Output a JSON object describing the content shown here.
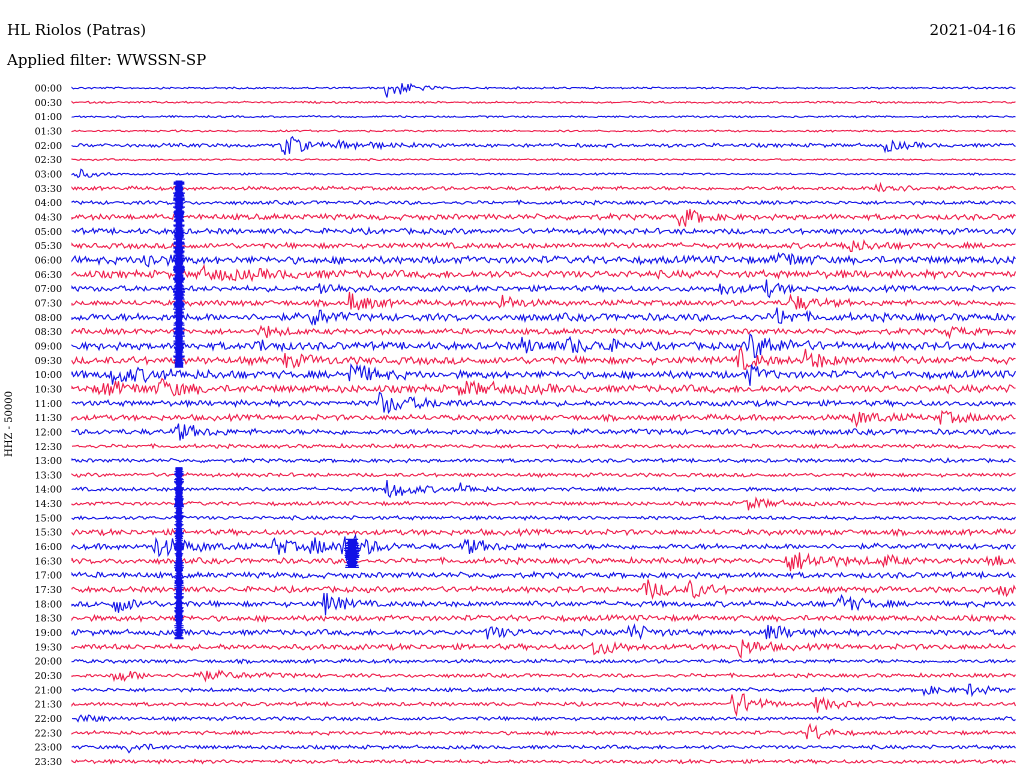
{
  "header": {
    "station": "HL Riolos (Patras)",
    "date": "2021-04-16",
    "filter": "Applied filter: WWSSN-SP"
  },
  "chart_data": {
    "type": "line",
    "title": "HL Riolos (Patras)",
    "ylabel": "HHZ - 50000",
    "row_labels": [
      "00:00",
      "00:30",
      "01:00",
      "01:30",
      "02:00",
      "02:30",
      "03:00",
      "03:30",
      "04:00",
      "04:30",
      "05:00",
      "05:30",
      "06:00",
      "06:30",
      "07:00",
      "07:30",
      "08:00",
      "08:30",
      "09:00",
      "09:30",
      "10:00",
      "10:30",
      "11:00",
      "11:30",
      "12:00",
      "12:30",
      "13:00",
      "13:30",
      "14:00",
      "14:30",
      "15:00",
      "15:30",
      "16:00",
      "16:30",
      "17:00",
      "17:30",
      "18:00",
      "18:30",
      "19:00",
      "19:30",
      "20:00",
      "20:30",
      "21:00",
      "21:30",
      "22:00",
      "22:30",
      "23:00",
      "23:30"
    ],
    "colors": {
      "even_rows": "#1010e6",
      "odd_rows": "#ee1c4a"
    },
    "row_noise": [
      1,
      1,
      1,
      1,
      2,
      1,
      1,
      2,
      2,
      3,
      3,
      3,
      4,
      4,
      3,
      3,
      4,
      3,
      4,
      4,
      4,
      4,
      3,
      3,
      3,
      2,
      2,
      2,
      2,
      2,
      2,
      3,
      3,
      3,
      3,
      3,
      3,
      3,
      3,
      3,
      2,
      2,
      2,
      2,
      2,
      2,
      2,
      2
    ],
    "events": [
      {
        "row": 0,
        "minute": 10.0,
        "amp": 12,
        "width": 0.6
      },
      {
        "row": 4,
        "minute": 6.7,
        "amp": 14,
        "width": 0.5
      },
      {
        "row": 4,
        "minute": 8.4,
        "amp": 4,
        "width": 1.2
      },
      {
        "row": 4,
        "minute": 25.8,
        "amp": 6,
        "width": 0.6
      },
      {
        "row": 6,
        "minute": 0.1,
        "amp": 6,
        "width": 0.5
      },
      {
        "row": 7,
        "minute": 25.6,
        "amp": 7,
        "width": 0.6
      },
      {
        "row": 9,
        "minute": 19.3,
        "amp": 10,
        "width": 0.6
      },
      {
        "row": 11,
        "minute": 24.5,
        "amp": 6,
        "width": 0.8
      },
      {
        "row": 12,
        "minute": 2.3,
        "amp": 8,
        "width": 0.5
      },
      {
        "row": 12,
        "minute": 22.5,
        "amp": 9,
        "width": 0.5
      },
      {
        "row": 13,
        "minute": 4.0,
        "amp": 5,
        "width": 2.0
      },
      {
        "row": 14,
        "minute": 7.8,
        "amp": 6,
        "width": 0.7
      },
      {
        "row": 14,
        "minute": 20.5,
        "amp": 6,
        "width": 0.6
      },
      {
        "row": 14,
        "minute": 22.0,
        "amp": 8,
        "width": 0.5
      },
      {
        "row": 15,
        "minute": 8.8,
        "amp": 10,
        "width": 0.6
      },
      {
        "row": 15,
        "minute": 13.6,
        "amp": 8,
        "width": 0.5
      },
      {
        "row": 15,
        "minute": 22.8,
        "amp": 8,
        "width": 0.7
      },
      {
        "row": 16,
        "minute": 7.6,
        "amp": 9,
        "width": 0.5
      },
      {
        "row": 16,
        "minute": 22.4,
        "amp": 8,
        "width": 0.5
      },
      {
        "row": 17,
        "minute": 6.0,
        "amp": 6,
        "width": 0.5
      },
      {
        "row": 17,
        "minute": 27.8,
        "amp": 5,
        "width": 0.5
      },
      {
        "row": 18,
        "minute": 5.8,
        "amp": 6,
        "width": 0.5
      },
      {
        "row": 18,
        "minute": 14.3,
        "amp": 6,
        "width": 0.7
      },
      {
        "row": 18,
        "minute": 15.7,
        "amp": 7,
        "width": 0.6
      },
      {
        "row": 18,
        "minute": 16.8,
        "amp": 7,
        "width": 0.4
      },
      {
        "row": 18,
        "minute": 21.5,
        "amp": 12,
        "width": 0.9
      },
      {
        "row": 19,
        "minute": 6.7,
        "amp": 6,
        "width": 0.7
      },
      {
        "row": 19,
        "minute": 21.2,
        "amp": 10,
        "width": 0.5
      },
      {
        "row": 19,
        "minute": 23.3,
        "amp": 9,
        "width": 0.6
      },
      {
        "row": 20,
        "minute": 1.2,
        "amp": 7,
        "width": 1.5
      },
      {
        "row": 20,
        "minute": 8.8,
        "amp": 12,
        "width": 0.6
      },
      {
        "row": 20,
        "minute": 21.5,
        "amp": 10,
        "width": 0.4
      },
      {
        "row": 21,
        "minute": 0.9,
        "amp": 6,
        "width": 1.2
      },
      {
        "row": 21,
        "minute": 2.8,
        "amp": 8,
        "width": 0.6
      },
      {
        "row": 21,
        "minute": 12.3,
        "amp": 6,
        "width": 1.5
      },
      {
        "row": 22,
        "minute": 9.7,
        "amp": 11,
        "width": 1.0
      },
      {
        "row": 23,
        "minute": 24.8,
        "amp": 7,
        "width": 0.8
      },
      {
        "row": 23,
        "minute": 27.5,
        "amp": 6,
        "width": 0.8
      },
      {
        "row": 24,
        "minute": 3.3,
        "amp": 9,
        "width": 0.6
      },
      {
        "row": 28,
        "minute": 10.0,
        "amp": 9,
        "width": 0.8
      },
      {
        "row": 28,
        "minute": 12.3,
        "amp": 5,
        "width": 0.5
      },
      {
        "row": 29,
        "minute": 21.4,
        "amp": 6,
        "width": 0.8
      },
      {
        "row": 32,
        "minute": 2.6,
        "amp": 10,
        "width": 1.0
      },
      {
        "row": 32,
        "minute": 6.4,
        "amp": 10,
        "width": 0.5
      },
      {
        "row": 32,
        "minute": 7.6,
        "amp": 8,
        "width": 0.6
      },
      {
        "row": 32,
        "minute": 8.6,
        "amp": 16,
        "width": 0.7
      },
      {
        "row": 32,
        "minute": 12.4,
        "amp": 8,
        "width": 0.7
      },
      {
        "row": 33,
        "minute": 22.7,
        "amp": 10,
        "width": 1.2
      },
      {
        "row": 33,
        "minute": 25.7,
        "amp": 5,
        "width": 0.5
      },
      {
        "row": 33,
        "minute": 29.1,
        "amp": 7,
        "width": 0.5
      },
      {
        "row": 35,
        "minute": 18.2,
        "amp": 10,
        "width": 0.6
      },
      {
        "row": 35,
        "minute": 19.6,
        "amp": 8,
        "width": 0.6
      },
      {
        "row": 35,
        "minute": 29.5,
        "amp": 5,
        "width": 0.5
      },
      {
        "row": 36,
        "minute": 1.3,
        "amp": 10,
        "width": 0.5
      },
      {
        "row": 36,
        "minute": 8.0,
        "amp": 12,
        "width": 0.5
      },
      {
        "row": 36,
        "minute": 24.4,
        "amp": 9,
        "width": 0.6
      },
      {
        "row": 38,
        "minute": 13.2,
        "amp": 6,
        "width": 0.6
      },
      {
        "row": 38,
        "minute": 17.6,
        "amp": 9,
        "width": 0.6
      },
      {
        "row": 38,
        "minute": 22.1,
        "amp": 8,
        "width": 0.6
      },
      {
        "row": 39,
        "minute": 16.5,
        "amp": 10,
        "width": 0.6
      },
      {
        "row": 39,
        "minute": 21.2,
        "amp": 9,
        "width": 0.6
      },
      {
        "row": 41,
        "minute": 1.3,
        "amp": 8,
        "width": 0.6
      },
      {
        "row": 41,
        "minute": 3.8,
        "amp": 5,
        "width": 1.4
      },
      {
        "row": 42,
        "minute": 26.9,
        "amp": 6,
        "width": 0.5
      },
      {
        "row": 42,
        "minute": 28.5,
        "amp": 6,
        "width": 0.5
      },
      {
        "row": 43,
        "minute": 21.0,
        "amp": 16,
        "width": 0.6
      },
      {
        "row": 43,
        "minute": 23.6,
        "amp": 8,
        "width": 0.6
      },
      {
        "row": 44,
        "minute": 0.2,
        "amp": 5,
        "width": 0.5
      },
      {
        "row": 45,
        "minute": 23.4,
        "amp": 10,
        "width": 0.5
      },
      {
        "row": 46,
        "minute": 1.8,
        "amp": 5,
        "width": 0.5
      }
    ],
    "bursts": [
      {
        "from_row": 7,
        "to_row": 19,
        "minute": 3.4,
        "width": 0.3,
        "half_width": 6
      },
      {
        "from_row": 27,
        "to_row": 38,
        "minute": 3.4,
        "width": 0.3,
        "half_width": 5
      },
      {
        "from_row": 32,
        "to_row": 33,
        "minute": 8.9,
        "width": 0.4,
        "half_width": 8
      }
    ]
  }
}
